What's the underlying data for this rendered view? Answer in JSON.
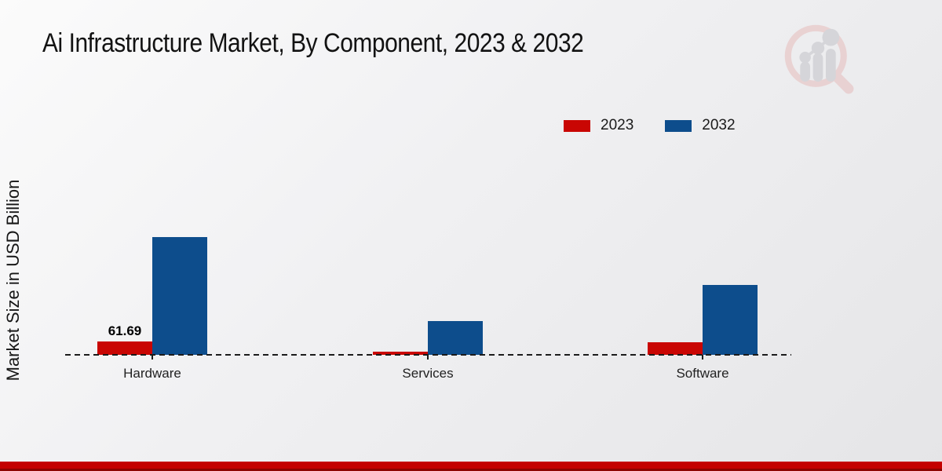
{
  "title": "Ai Infrastructure Market, By Component, 2023 & 2032",
  "watermark_icon": "magnifier-bar-chart-logo",
  "chart_data": {
    "type": "bar",
    "title": "Ai Infrastructure Market, By Component, 2023 & 2032",
    "xlabel": "",
    "ylabel": "Market Size in USD Billion",
    "categories": [
      "Hardware",
      "Services",
      "Software"
    ],
    "series": [
      {
        "name": "2023",
        "color": "#c90603",
        "values": [
          61.69,
          14.5,
          58
        ],
        "data_labels": [
          "61.69",
          "",
          ""
        ]
      },
      {
        "name": "2032",
        "color": "#0d4d8c",
        "values": [
          544,
          156,
          323
        ],
        "data_labels": [
          "",
          "",
          ""
        ]
      }
    ],
    "ylim": [
      0,
      560
    ],
    "grid": false,
    "baseline_style": "dashed",
    "baseline_color": "#1b1b1b",
    "legend_position": "top-right"
  },
  "footer": {
    "bar_color": "#c40100",
    "edge_color": "#8c0300"
  }
}
